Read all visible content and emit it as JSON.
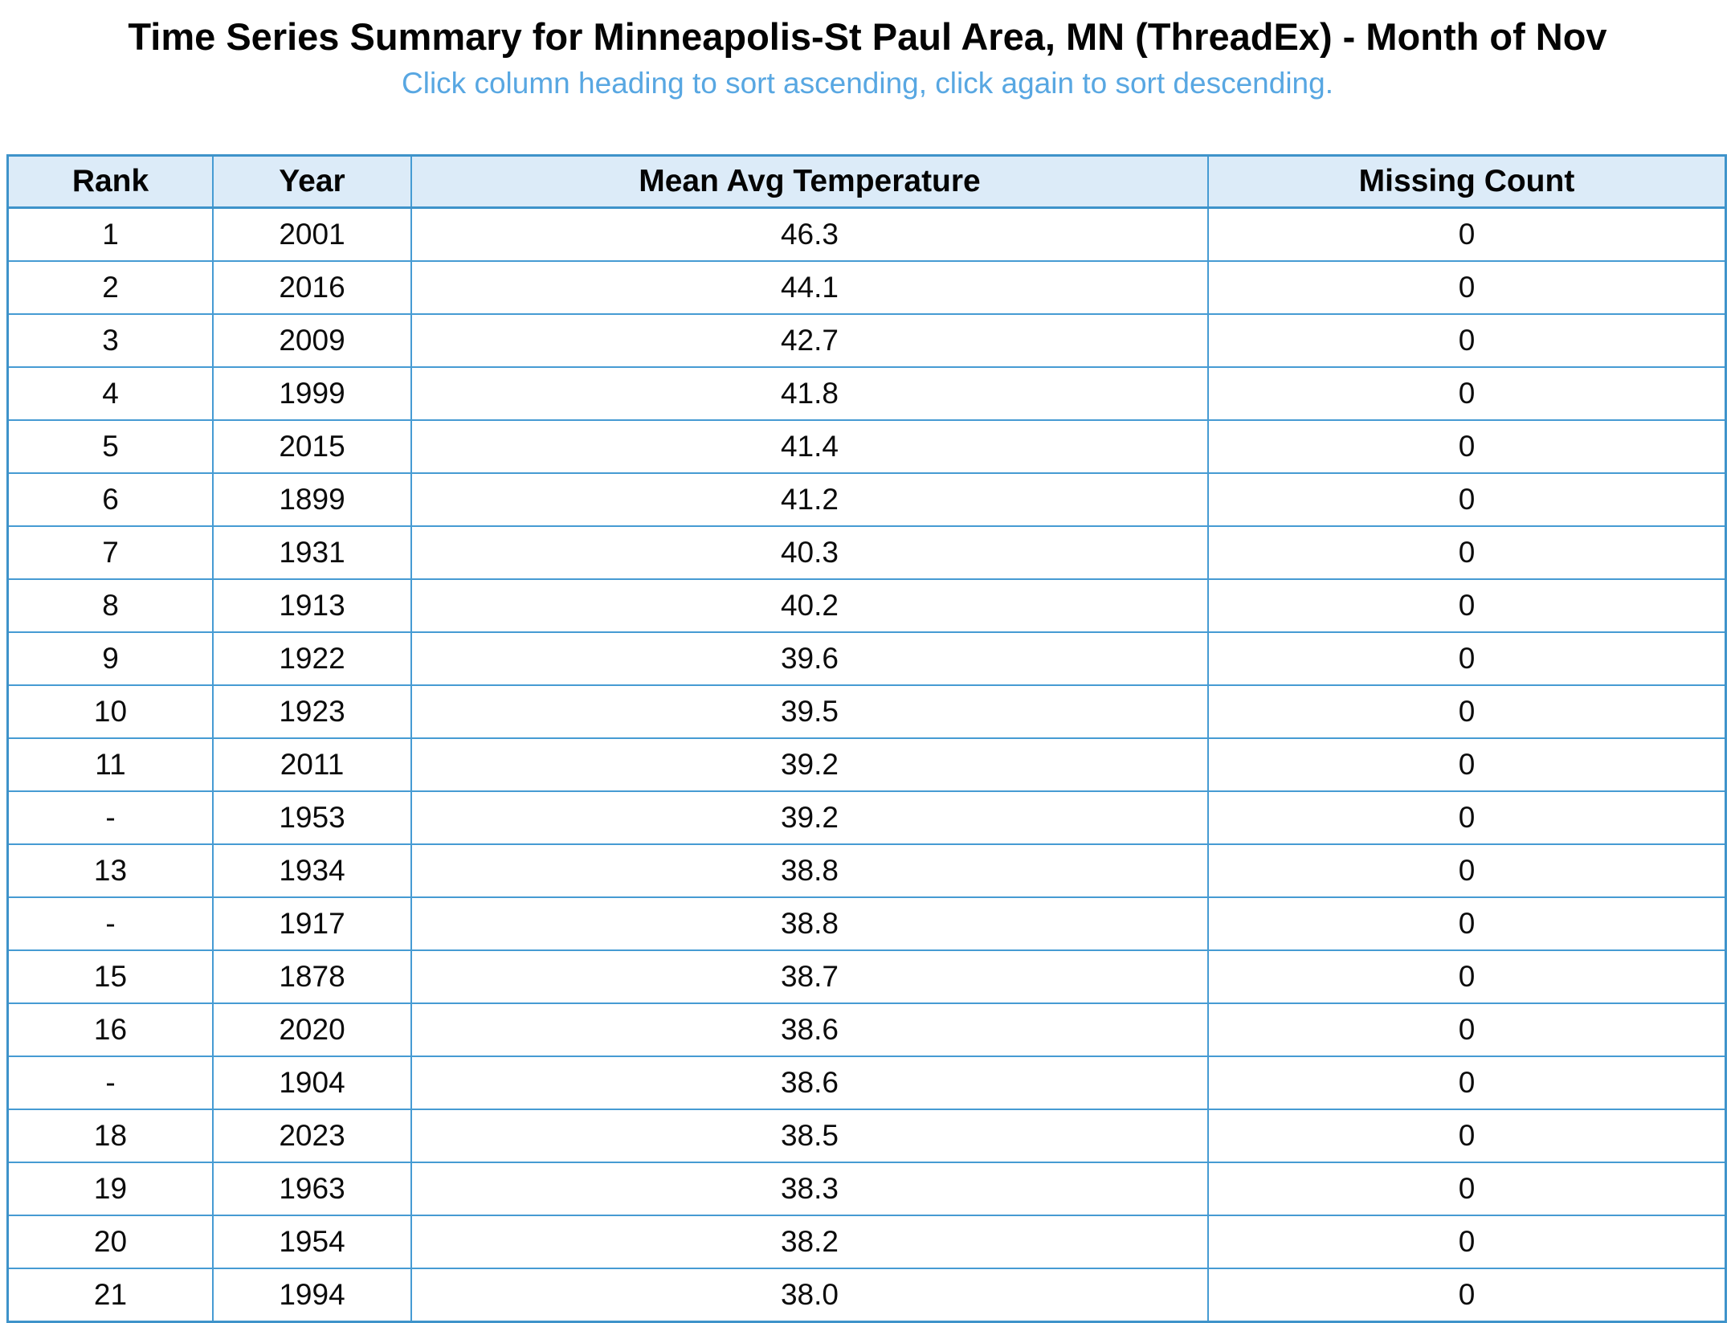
{
  "page": {
    "title": "Time Series Summary for Minneapolis-St Paul Area, MN (ThreadEx) - Month of Nov",
    "subtitle": "Click column heading to sort ascending, click again to sort descending."
  },
  "colors": {
    "table_border": "#3e93ca",
    "cell_border": "#469bd3",
    "header_background": "#dcebf8",
    "subtitle_text": "#58a7e2",
    "title_text": "#040404"
  },
  "table": {
    "columns": [
      "Rank",
      "Year",
      "Mean Avg Temperature",
      "Missing Count"
    ],
    "rows": [
      {
        "rank": "1",
        "year": "2001",
        "temp": "46.3",
        "missing": "0"
      },
      {
        "rank": "2",
        "year": "2016",
        "temp": "44.1",
        "missing": "0"
      },
      {
        "rank": "3",
        "year": "2009",
        "temp": "42.7",
        "missing": "0"
      },
      {
        "rank": "4",
        "year": "1999",
        "temp": "41.8",
        "missing": "0"
      },
      {
        "rank": "5",
        "year": "2015",
        "temp": "41.4",
        "missing": "0"
      },
      {
        "rank": "6",
        "year": "1899",
        "temp": "41.2",
        "missing": "0"
      },
      {
        "rank": "7",
        "year": "1931",
        "temp": "40.3",
        "missing": "0"
      },
      {
        "rank": "8",
        "year": "1913",
        "temp": "40.2",
        "missing": "0"
      },
      {
        "rank": "9",
        "year": "1922",
        "temp": "39.6",
        "missing": "0"
      },
      {
        "rank": "10",
        "year": "1923",
        "temp": "39.5",
        "missing": "0"
      },
      {
        "rank": "11",
        "year": "2011",
        "temp": "39.2",
        "missing": "0"
      },
      {
        "rank": "-",
        "year": "1953",
        "temp": "39.2",
        "missing": "0"
      },
      {
        "rank": "13",
        "year": "1934",
        "temp": "38.8",
        "missing": "0"
      },
      {
        "rank": "-",
        "year": "1917",
        "temp": "38.8",
        "missing": "0"
      },
      {
        "rank": "15",
        "year": "1878",
        "temp": "38.7",
        "missing": "0"
      },
      {
        "rank": "16",
        "year": "2020",
        "temp": "38.6",
        "missing": "0"
      },
      {
        "rank": "-",
        "year": "1904",
        "temp": "38.6",
        "missing": "0"
      },
      {
        "rank": "18",
        "year": "2023",
        "temp": "38.5",
        "missing": "0"
      },
      {
        "rank": "19",
        "year": "1963",
        "temp": "38.3",
        "missing": "0"
      },
      {
        "rank": "20",
        "year": "1954",
        "temp": "38.2",
        "missing": "0"
      },
      {
        "rank": "21",
        "year": "1994",
        "temp": "38.0",
        "missing": "0"
      }
    ]
  }
}
